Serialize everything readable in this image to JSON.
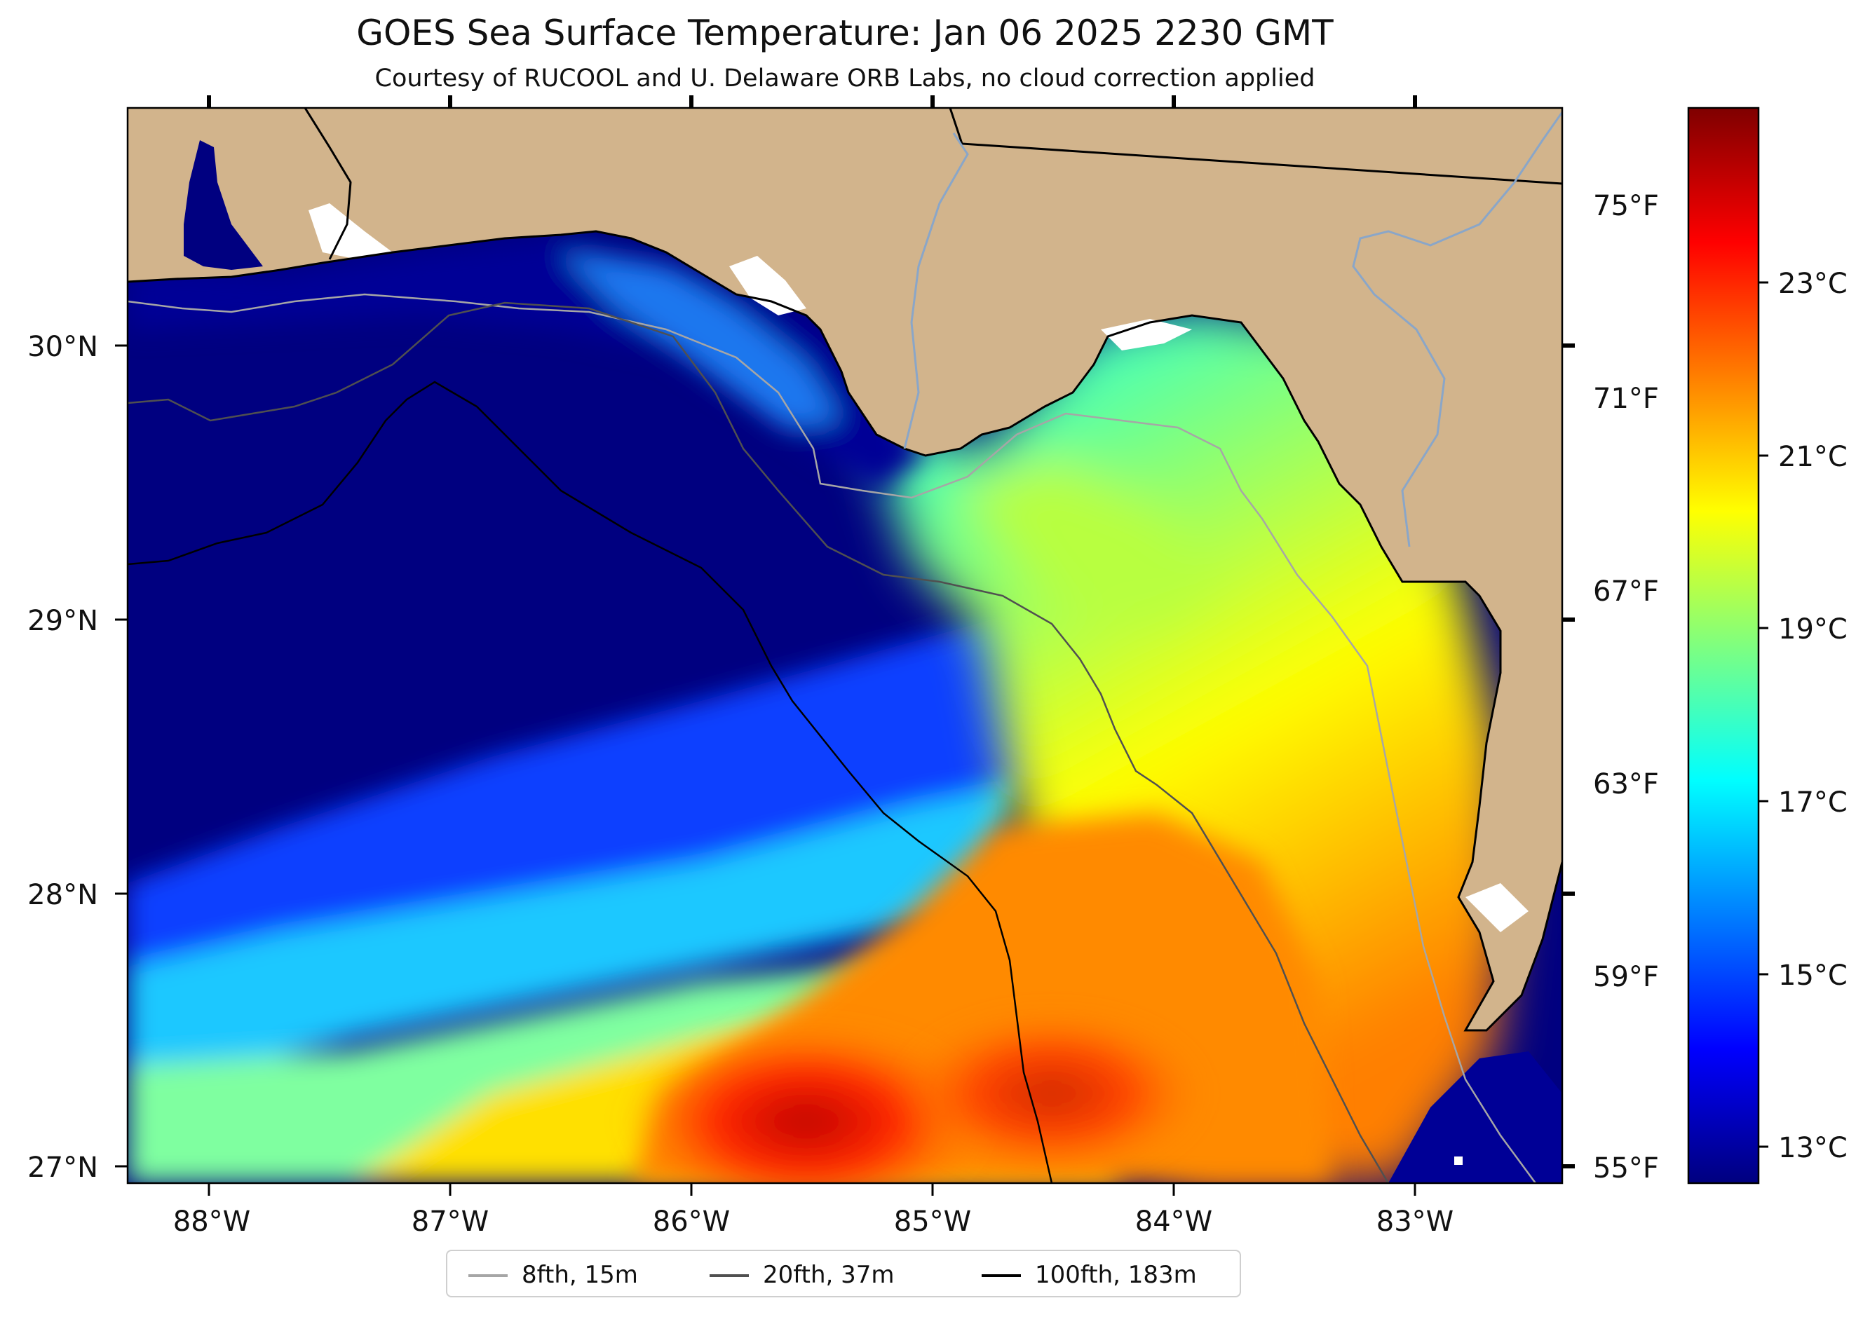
{
  "title": "GOES Sea Surface Temperature: Jan 06 2025 2230 GMT",
  "subtitle": "Courtesy of RUCOOL and U. Delaware ORB Labs, no cloud correction applied",
  "axes": {
    "lat_labels": [
      "30°N",
      "29°N",
      "28°N",
      "27°N"
    ],
    "lon_labels": [
      "88°W",
      "87°W",
      "86°W",
      "85°W",
      "84°W",
      "83°W"
    ],
    "fahrenheit_labels": [
      "75°F",
      "71°F",
      "67°F",
      "63°F",
      "59°F",
      "55°F"
    ],
    "celsius_labels": [
      "23°C",
      "21°C",
      "19°C",
      "17°C",
      "15°C",
      "13°C"
    ]
  },
  "colorbar": {
    "colors": [
      "#00007f",
      "#0000ff",
      "#007fff",
      "#00ffff",
      "#7fff7f",
      "#ffff00",
      "#ff7f00",
      "#ff0000",
      "#7f0000"
    ]
  },
  "colors": {
    "land": "#d2b48c",
    "deep_water": "#000080",
    "cloud_gap": "#ffffff"
  },
  "legend": {
    "items": [
      {
        "label": "8fth, 15m",
        "color": "#a6a6a6"
      },
      {
        "label": "20fth, 37m",
        "color": "#505050"
      },
      {
        "label": "100fth, 183m",
        "color": "#000000"
      }
    ]
  }
}
